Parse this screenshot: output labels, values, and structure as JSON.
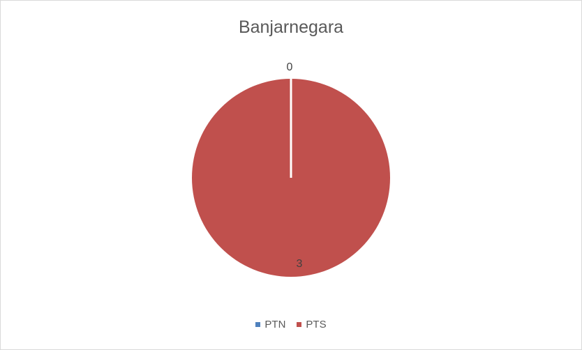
{
  "chart_data": {
    "type": "pie",
    "title": "Banjarnegara",
    "categories": [
      "PTN",
      "PTS"
    ],
    "values": [
      0,
      3
    ],
    "data_labels": [
      "0",
      "3"
    ],
    "colors": [
      "#4f81bd",
      "#c0504d"
    ],
    "legend_position": "bottom"
  }
}
